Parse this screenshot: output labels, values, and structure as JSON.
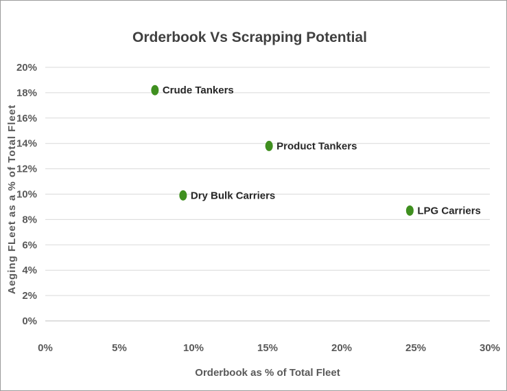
{
  "chart_data": {
    "type": "scatter",
    "title": "Orderbook Vs Scrapping Potential",
    "xlabel": "Orderbook as % of Total Fleet",
    "ylabel": "Aeging FLeet as a % of Total Fleet",
    "xlim": [
      0,
      30
    ],
    "ylim": [
      0,
      20
    ],
    "x_ticks": [
      "0%",
      "5%",
      "10%",
      "15%",
      "20%",
      "25%",
      "30%"
    ],
    "y_ticks": [
      "0%",
      "2%",
      "4%",
      "6%",
      "8%",
      "10%",
      "12%",
      "14%",
      "16%",
      "18%",
      "20%"
    ],
    "grid": "horizontal",
    "marker_color": "#3f8f1f",
    "points": [
      {
        "label": "Crude Tankers",
        "x": 7.4,
        "y": 18.2
      },
      {
        "label": "Product Tankers",
        "x": 15.1,
        "y": 13.8
      },
      {
        "label": "Dry Bulk Carriers",
        "x": 9.3,
        "y": 9.9
      },
      {
        "label": "LPG Carriers",
        "x": 24.6,
        "y": 8.7
      }
    ]
  }
}
